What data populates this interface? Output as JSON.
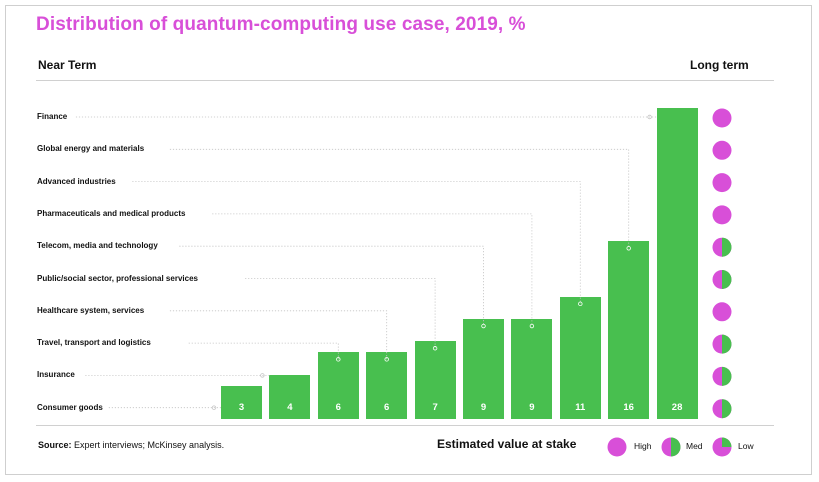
{
  "title": "Distribution of quantum-computing use case, 2019, %",
  "header_left": "Near Term",
  "header_right": "Long term",
  "source_label": "Source:",
  "source_text": " Expert interviews; McKinsey analysis.",
  "legend_title": "Estimated value at stake",
  "colors": {
    "bar": "#48bf4f",
    "high": "#d84fd8",
    "accent_green": "#48bf4f",
    "title": "#d84fd8"
  },
  "legend": [
    {
      "label": "High",
      "level": "high"
    },
    {
      "label": "Med",
      "level": "med"
    },
    {
      "label": "Low",
      "level": "low"
    }
  ],
  "chart_data": {
    "type": "bar",
    "title": "Distribution of quantum-computing use case, 2019, %",
    "categories": [
      "Consumer goods",
      "Insurance",
      "Travel, transport and logistics",
      "Healthcare system, services",
      "Public/social sector, professional services",
      "Telecom, media and technology",
      "Pharmaceuticals and medical products",
      "Advanced industries",
      "Global energy and materials",
      "Finance"
    ],
    "values": [
      3,
      4,
      6,
      6,
      7,
      9,
      9,
      11,
      16,
      28
    ],
    "bar_labels": [
      "3",
      "4",
      "6",
      "6",
      "7",
      "9",
      "9",
      "11",
      "16",
      "28"
    ],
    "long_term_value": [
      "med",
      "med",
      "med",
      "high",
      "med",
      "med",
      "high",
      "high",
      "high",
      "high"
    ],
    "ylim": [
      0,
      28
    ],
    "grid": false,
    "legend_position": "bottom-right"
  }
}
